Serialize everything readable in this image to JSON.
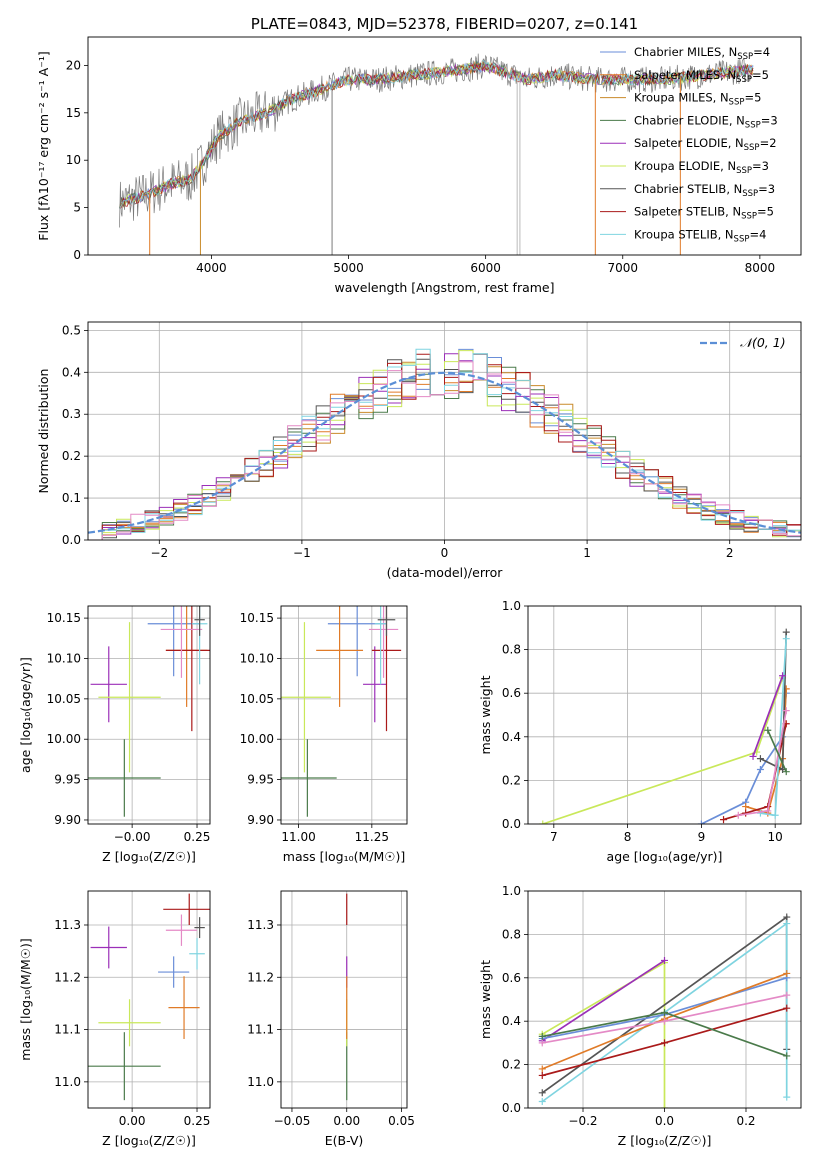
{
  "figure": {
    "background": "#ffffff"
  },
  "colors": {
    "chabrier_miles": "#6a8ed8",
    "salpeter_miles": "#e07b28",
    "kroupa_miles": "#c98a2a",
    "chabrier_elodie": "#4a7a4a",
    "salpeter_elodie": "#9b2fb8",
    "kroupa_elodie": "#c9e85a",
    "chabrier_stelib": "#555555",
    "salpeter_stelib": "#aa1a1a",
    "kroupa_stelib": "#7fd4e0",
    "pink": "#e48ac6",
    "normal_curve": "#5b8fd6"
  },
  "chart_data": [
    {
      "id": "spectrum",
      "type": "line",
      "title": "PLATE=0843, MJD=52378, FIBERID=0207, z=0.141",
      "xlabel": "wavelength [Angstrom, rest frame]",
      "ylabel": "Flux [fλ10⁻¹⁷ erg cm⁻² s⁻¹ A⁻¹]",
      "xlim": [
        3100,
        8300
      ],
      "ylim": [
        0,
        23
      ],
      "xticks": [
        "4000",
        "5000",
        "6000",
        "7000",
        "8000"
      ],
      "yticks": [
        "0",
        "5",
        "10",
        "15",
        "20"
      ],
      "continuum": {
        "x": [
          3330,
          3450,
          3550,
          3700,
          3850,
          3950,
          4050,
          4200,
          4400,
          4600,
          4800,
          5000,
          5200,
          5500,
          5800,
          6000,
          6300,
          6500,
          6800,
          7000,
          7300,
          7600,
          7900,
          8000
        ],
        "y": [
          5.5,
          6.0,
          6.5,
          7.5,
          8.0,
          10.0,
          12.5,
          14.0,
          15.0,
          16.5,
          17.5,
          18.5,
          18.5,
          19.0,
          19.5,
          20.0,
          18.5,
          19.0,
          18.5,
          18.5,
          18.5,
          19.0,
          19.5,
          19.5
        ]
      },
      "dips": [
        {
          "x": 4880,
          "label": ""
        },
        {
          "x": 6230,
          "label": ""
        },
        {
          "x": 6250,
          "label": ""
        }
      ],
      "legend": [
        {
          "label": "Chabrier MILES, N",
          "sub": "SSP",
          "tail": "=4"
        },
        {
          "label": "Salpeter MILES, N",
          "sub": "SSP",
          "tail": "=5"
        },
        {
          "label": "Kroupa MILES, N",
          "sub": "SSP",
          "tail": "=5"
        },
        {
          "label": "Chabrier ELODIE, N",
          "sub": "SSP",
          "tail": "=3"
        },
        {
          "label": "Salpeter ELODIE, N",
          "sub": "SSP",
          "tail": "=2"
        },
        {
          "label": "Kroupa ELODIE, N",
          "sub": "SSP",
          "tail": "=3"
        },
        {
          "label": "Chabrier STELIB, N",
          "sub": "SSP",
          "tail": "=3"
        },
        {
          "label": "Salpeter STELIB, N",
          "sub": "SSP",
          "tail": "=5"
        },
        {
          "label": "Kroupa STELIB, N",
          "sub": "SSP",
          "tail": "=4"
        }
      ]
    },
    {
      "id": "residuals",
      "type": "line",
      "xlabel": "(data-model)/error",
      "ylabel": "Normed distribution",
      "xlim": [
        -2.5,
        2.5
      ],
      "ylim": [
        0,
        0.52
      ],
      "xticks": [
        "−2",
        "−1",
        "0",
        "1",
        "2"
      ],
      "yticks": [
        "0.0",
        "0.1",
        "0.2",
        "0.3",
        "0.4",
        "0.5"
      ],
      "legend": "𝒩(0, 1)",
      "bin_width": 0.1
    },
    {
      "id": "age_vs_Z",
      "type": "scatter",
      "xlabel": "Z [log₁₀(Z/Z☉)]",
      "ylabel": "age  [log₁₀(age/yr)]",
      "xlim": [
        -0.17,
        0.3
      ],
      "ylim": [
        9.895,
        10.165
      ],
      "xticks": [
        "−0.00",
        "0.25"
      ],
      "yticks": [
        "9.90",
        "9.95",
        "10.00",
        "10.05",
        "10.10",
        "10.15"
      ],
      "points": [
        {
          "x": -0.03,
          "xerr": 0.14,
          "y": 9.952,
          "yerr": 0.048,
          "c": "chabrier_elodie"
        },
        {
          "x": -0.09,
          "xerr": 0.07,
          "y": 10.068,
          "yerr": 0.047,
          "c": "salpeter_elodie"
        },
        {
          "x": -0.01,
          "xerr": 0.12,
          "y": 10.052,
          "yerr": 0.093,
          "c": "kroupa_elodie"
        },
        {
          "x": 0.16,
          "xerr": 0.1,
          "y": 10.143,
          "yerr": 0.065,
          "c": "chabrier_miles"
        },
        {
          "x": 0.21,
          "xerr": 0.08,
          "y": 10.11,
          "yerr": 0.07,
          "c": "salpeter_miles"
        },
        {
          "x": 0.23,
          "xerr": 0.1,
          "y": 10.11,
          "yerr": 0.1,
          "c": "salpeter_stelib"
        },
        {
          "x": 0.19,
          "xerr": 0.08,
          "y": 10.136,
          "yerr": 0.06,
          "c": "pink"
        },
        {
          "x": 0.26,
          "xerr": 0.03,
          "y": 10.143,
          "yerr": 0.075,
          "c": "kroupa_stelib"
        },
        {
          "x": 0.26,
          "xerr": 0.02,
          "y": 10.148,
          "yerr": 0.02,
          "c": "chabrier_stelib"
        }
      ]
    },
    {
      "id": "age_vs_mass",
      "type": "scatter",
      "xlabel": "mass [log₁₀(M/M☉)]",
      "ylabel": "",
      "xlim": [
        10.94,
        11.37
      ],
      "ylim": [
        9.895,
        10.165
      ],
      "xticks": [
        "11.00",
        "11.25"
      ],
      "yticks": [
        "9.90",
        "9.95",
        "10.00",
        "10.05",
        "10.10",
        "10.15"
      ],
      "points": [
        {
          "x": 11.03,
          "xerr": 0.1,
          "y": 9.952,
          "yerr": 0.048,
          "c": "chabrier_elodie"
        },
        {
          "x": 11.26,
          "xerr": 0.04,
          "y": 10.068,
          "yerr": 0.047,
          "c": "salpeter_elodie"
        },
        {
          "x": 11.02,
          "xerr": 0.09,
          "y": 10.052,
          "yerr": 0.093,
          "c": "kroupa_elodie"
        },
        {
          "x": 11.2,
          "xerr": 0.1,
          "y": 10.143,
          "yerr": 0.065,
          "c": "chabrier_miles"
        },
        {
          "x": 11.14,
          "xerr": 0.08,
          "y": 10.11,
          "yerr": 0.07,
          "c": "salpeter_miles"
        },
        {
          "x": 11.3,
          "xerr": 0.05,
          "y": 10.11,
          "yerr": 0.1,
          "c": "salpeter_stelib"
        },
        {
          "x": 11.29,
          "xerr": 0.05,
          "y": 10.136,
          "yerr": 0.06,
          "c": "pink"
        },
        {
          "x": 11.28,
          "xerr": 0.02,
          "y": 10.143,
          "yerr": 0.075,
          "c": "kroupa_stelib"
        },
        {
          "x": 11.3,
          "xerr": 0.03,
          "y": 10.148,
          "yerr": 0.02,
          "c": "chabrier_stelib"
        }
      ]
    },
    {
      "id": "weight_vs_age",
      "type": "line",
      "xlabel": "age  [log₁₀(age/yr)]",
      "ylabel": "mass weight",
      "xlim": [
        6.65,
        10.35
      ],
      "ylim": [
        0,
        1.0
      ],
      "xticks": [
        "7",
        "8",
        "9",
        "10"
      ],
      "yticks": [
        "0.0",
        "0.2",
        "0.4",
        "0.6",
        "0.8",
        "1.0"
      ],
      "series": [
        {
          "c": "kroupa_elodie",
          "x": [
            6.85,
            9.75,
            10.1
          ],
          "y": [
            0.0,
            0.33,
            0.67
          ]
        },
        {
          "c": "chabrier_miles",
          "x": [
            9.0,
            9.6,
            9.8,
            10.1,
            10.15
          ],
          "y": [
            0.0,
            0.1,
            0.25,
            0.4,
            0.6
          ]
        },
        {
          "c": "salpeter_miles",
          "x": [
            9.6,
            9.9,
            10.1,
            10.15
          ],
          "y": [
            0.08,
            0.05,
            0.3,
            0.62
          ]
        },
        {
          "c": "salpeter_stelib",
          "x": [
            9.3,
            9.6,
            9.9,
            10.15
          ],
          "y": [
            0.02,
            0.05,
            0.08,
            0.46
          ]
        },
        {
          "c": "chabrier_stelib",
          "x": [
            9.8,
            10.1,
            10.15
          ],
          "y": [
            0.3,
            0.25,
            0.88
          ]
        },
        {
          "c": "kroupa_stelib",
          "x": [
            9.8,
            10.0,
            10.15
          ],
          "y": [
            0.05,
            0.04,
            0.85
          ]
        },
        {
          "c": "pink",
          "x": [
            9.5,
            9.9,
            10.15
          ],
          "y": [
            0.04,
            0.06,
            0.52
          ]
        },
        {
          "c": "salpeter_elodie",
          "x": [
            9.7,
            10.1
          ],
          "y": [
            0.31,
            0.68
          ]
        },
        {
          "c": "chabrier_elodie",
          "x": [
            9.9,
            10.15
          ],
          "y": [
            0.43,
            0.24
          ]
        }
      ]
    },
    {
      "id": "mass_vs_Z",
      "type": "scatter",
      "xlabel": "Z [log₁₀(Z/Z☉)]",
      "ylabel": "mass [log₁₀(M/M☉)]",
      "xlim": [
        -0.17,
        0.3
      ],
      "ylim": [
        10.95,
        11.365
      ],
      "xticks": [
        "0.00",
        "0.25"
      ],
      "yticks": [
        "11.0",
        "11.1",
        "11.2",
        "11.3"
      ],
      "points": [
        {
          "x": -0.03,
          "xerr": 0.14,
          "y": 11.03,
          "yerr": 0.065,
          "c": "chabrier_elodie"
        },
        {
          "x": -0.09,
          "xerr": 0.07,
          "y": 11.257,
          "yerr": 0.04,
          "c": "salpeter_elodie"
        },
        {
          "x": -0.01,
          "xerr": 0.12,
          "y": 11.113,
          "yerr": 0.045,
          "c": "kroupa_elodie"
        },
        {
          "x": 0.16,
          "xerr": 0.06,
          "y": 11.21,
          "yerr": 0.03,
          "c": "chabrier_miles"
        },
        {
          "x": 0.2,
          "xerr": 0.06,
          "y": 11.142,
          "yerr": 0.06,
          "c": "salpeter_miles"
        },
        {
          "x": 0.22,
          "xerr": 0.1,
          "y": 11.33,
          "yerr": 0.03,
          "c": "salpeter_stelib"
        },
        {
          "x": 0.19,
          "xerr": 0.06,
          "y": 11.29,
          "yerr": 0.03,
          "c": "pink"
        },
        {
          "x": 0.25,
          "xerr": 0.03,
          "y": 11.245,
          "yerr": 0.03,
          "c": "kroupa_stelib"
        },
        {
          "x": 0.26,
          "xerr": 0.02,
          "y": 11.295,
          "yerr": 0.02,
          "c": "chabrier_stelib"
        }
      ]
    },
    {
      "id": "mass_vs_ebv",
      "type": "scatter",
      "xlabel": "E(B-V)",
      "ylabel": "",
      "xlim": [
        -0.06,
        0.055
      ],
      "ylim": [
        10.95,
        11.365
      ],
      "xticks": [
        "−0.05",
        "0.00",
        "0.05"
      ],
      "yticks": [
        "11.0",
        "11.1",
        "11.2",
        "11.3"
      ],
      "points": [
        {
          "x": 0.0,
          "xerr": 0.0,
          "y": 11.03,
          "yerr": 0.065,
          "c": "chabrier_elodie"
        },
        {
          "x": 0.0,
          "xerr": 0.0,
          "y": 11.113,
          "yerr": 0.045,
          "c": "kroupa_elodie"
        },
        {
          "x": 0.0,
          "xerr": 0.0,
          "y": 11.21,
          "yerr": 0.03,
          "c": "salpeter_elodie"
        },
        {
          "x": 0.0,
          "xerr": 0.0,
          "y": 11.142,
          "yerr": 0.06,
          "c": "salpeter_miles"
        },
        {
          "x": 0.0,
          "xerr": 0.0,
          "y": 11.33,
          "yerr": 0.03,
          "c": "salpeter_stelib"
        }
      ]
    },
    {
      "id": "weight_vs_Z",
      "type": "line",
      "xlabel": "Z [log₁₀(Z/Z☉)]",
      "ylabel": "mass weight",
      "xlim": [
        -0.335,
        0.335
      ],
      "ylim": [
        0,
        1.0
      ],
      "xticks": [
        "−0.2",
        "0.0",
        "0.2"
      ],
      "yticks": [
        "0.0",
        "0.2",
        "0.4",
        "0.6",
        "0.8",
        "1.0"
      ],
      "series": [
        {
          "c": "kroupa_elodie",
          "x": [
            -0.3,
            0.0,
            0.0
          ],
          "y": [
            0.34,
            0.67,
            0.0
          ]
        },
        {
          "c": "salpeter_elodie",
          "x": [
            -0.3,
            0.0
          ],
          "y": [
            0.31,
            0.68
          ]
        },
        {
          "c": "chabrier_stelib",
          "x": [
            -0.3,
            0.3,
            0.3
          ],
          "y": [
            0.07,
            0.88,
            0.27
          ]
        },
        {
          "c": "kroupa_stelib",
          "x": [
            -0.3,
            0.3,
            0.3
          ],
          "y": [
            0.03,
            0.85,
            0.05
          ]
        },
        {
          "c": "chabrier_miles",
          "x": [
            -0.3,
            0.0,
            0.3
          ],
          "y": [
            0.32,
            0.43,
            0.6
          ]
        },
        {
          "c": "salpeter_miles",
          "x": [
            -0.3,
            0.0,
            0.3
          ],
          "y": [
            0.18,
            0.41,
            0.62
          ]
        },
        {
          "c": "pink",
          "x": [
            -0.3,
            0.0,
            0.3
          ],
          "y": [
            0.3,
            0.4,
            0.52
          ]
        },
        {
          "c": "salpeter_stelib",
          "x": [
            -0.3,
            0.0,
            0.3
          ],
          "y": [
            0.15,
            0.3,
            0.46
          ]
        },
        {
          "c": "chabrier_elodie",
          "x": [
            -0.3,
            0.0,
            0.3
          ],
          "y": [
            0.33,
            0.44,
            0.24
          ]
        }
      ]
    }
  ]
}
